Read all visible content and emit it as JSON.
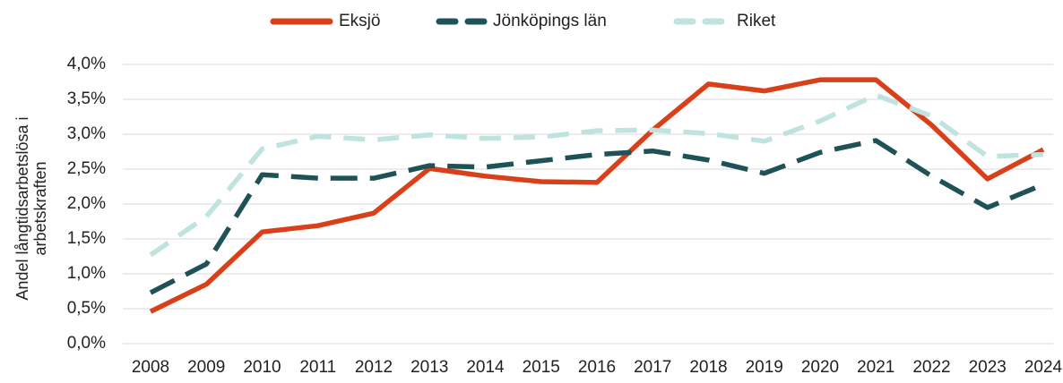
{
  "chart_data": {
    "type": "line",
    "y_label": "Andel långtidsarbetslösa i arbetskraften",
    "categories": [
      "2008",
      "2009",
      "2010",
      "2011",
      "2012",
      "2013",
      "2014",
      "2015",
      "2016",
      "2017",
      "2018",
      "2019",
      "2020",
      "2021",
      "2022",
      "2023",
      "2024"
    ],
    "series": [
      {
        "name": "Eksjö",
        "color": "#d9401a",
        "dash": "solid",
        "values": [
          0.46,
          0.85,
          1.6,
          1.69,
          1.87,
          2.51,
          2.4,
          2.32,
          2.31,
          3.06,
          3.72,
          3.62,
          3.78,
          3.78,
          3.13,
          2.36,
          2.78
        ]
      },
      {
        "name": "Jönköpings län",
        "color": "#1f5257",
        "dash": "dashed",
        "values": [
          0.73,
          1.14,
          2.42,
          2.37,
          2.37,
          2.55,
          2.53,
          2.62,
          2.71,
          2.76,
          2.63,
          2.44,
          2.74,
          2.91,
          2.4,
          1.95,
          2.28
        ]
      },
      {
        "name": "Riket",
        "color": "#bfe3df",
        "dash": "dashed",
        "values": [
          1.27,
          1.82,
          2.79,
          2.97,
          2.92,
          2.99,
          2.94,
          2.96,
          3.05,
          3.06,
          3.01,
          2.9,
          3.19,
          3.56,
          3.26,
          2.68,
          2.71
        ]
      }
    ],
    "ylim": [
      0,
      4
    ],
    "yticks": [
      {
        "value": 0,
        "label": "0,0%"
      },
      {
        "value": 0.5,
        "label": "0,5%"
      },
      {
        "value": 1,
        "label": "1,0%"
      },
      {
        "value": 1.5,
        "label": "1,5%"
      },
      {
        "value": 2,
        "label": "2,0%"
      },
      {
        "value": 2.5,
        "label": "2,5%"
      },
      {
        "value": 3,
        "label": "3,0%"
      },
      {
        "value": 3.5,
        "label": "3,5%"
      },
      {
        "value": 4,
        "label": "4,0%"
      }
    ],
    "grid": true,
    "legend": "top"
  }
}
